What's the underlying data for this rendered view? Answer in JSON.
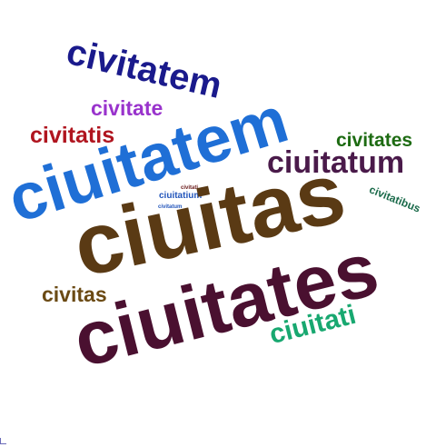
{
  "words": [
    {
      "text": "civitatem",
      "color": "#1a1a8c"
    },
    {
      "text": "civitate",
      "color": "#9933cc"
    },
    {
      "text": "civitatis",
      "color": "#b0151f"
    },
    {
      "text": "ciuitatem",
      "color": "#1f6fd6"
    },
    {
      "text": "civitates",
      "color": "#1d6b12"
    },
    {
      "text": "ciuitatum",
      "color": "#4a1a4a"
    },
    {
      "text": "civitati",
      "color": "#6a1a1a"
    },
    {
      "text": "ciuitatium",
      "color": "#2255bb"
    },
    {
      "text": "civitatum",
      "color": "#2255bb"
    },
    {
      "text": "civitatibus",
      "color": "#1a6a4a"
    },
    {
      "text": "ciuitas",
      "color": "#5a3a14"
    },
    {
      "text": "civitas",
      "color": "#6b4a14"
    },
    {
      "text": "ciuitates",
      "color": "#4a1030"
    },
    {
      "text": "ciuitati",
      "color": "#18a870"
    }
  ]
}
